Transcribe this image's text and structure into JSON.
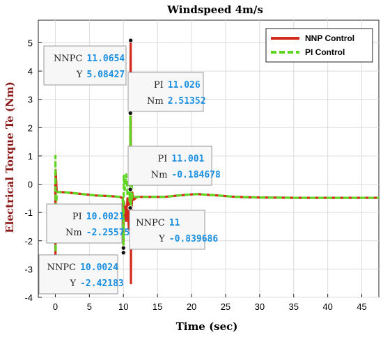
{
  "chart_data": {
    "type": "line",
    "title": "Windspeed 4m/s",
    "xlabel": "Time (sec)",
    "ylabel": "Electrical Torque Te (Nm)",
    "xlim": [
      -2.5,
      47.5
    ],
    "ylim": [
      -4,
      5.8
    ],
    "xticks": [
      0,
      5,
      10,
      15,
      20,
      25,
      30,
      35,
      40,
      45
    ],
    "yticks": [
      -4,
      -3,
      -2,
      -1,
      0,
      1,
      2,
      3,
      4,
      5
    ],
    "grid": true,
    "legend_position": "top-right",
    "series": [
      {
        "name": "NNP Control",
        "color": "#d42a1e",
        "style": "solid",
        "x": [
          0,
          0.02,
          0.05,
          0.2,
          1,
          2,
          4,
          6,
          8,
          9.5,
          9.9,
          10.0,
          10.0024,
          10.05,
          10.2,
          10.4,
          10.6,
          10.8,
          10.9,
          11.0,
          11.02,
          11.0654,
          11.1,
          11.15,
          11.2,
          11.3,
          11.5,
          12,
          14,
          16,
          18,
          20,
          21,
          22,
          24,
          26,
          28,
          30,
          35,
          40,
          45,
          47.5
        ],
        "y": [
          0,
          -2.6,
          0.5,
          -0.28,
          -0.28,
          -0.3,
          -0.35,
          -0.4,
          -0.42,
          -0.45,
          -0.5,
          -2.0,
          -2.42183,
          -0.6,
          -0.8,
          -1.3,
          -0.5,
          -1.6,
          -0.7,
          -0.839686,
          3.0,
          5.08427,
          -3.5,
          0.9,
          -0.9,
          -0.3,
          -0.55,
          -0.45,
          -0.45,
          -0.45,
          -0.4,
          -0.36,
          -0.35,
          -0.37,
          -0.4,
          -0.44,
          -0.46,
          -0.47,
          -0.48,
          -0.48,
          -0.48,
          -0.48
        ]
      },
      {
        "name": "PI Control",
        "color": "#5ed622",
        "style": "dashed",
        "x": [
          0,
          0.02,
          0.05,
          0.2,
          1,
          2,
          4,
          6,
          8,
          9.5,
          9.9,
          10.0,
          10.0021,
          10.05,
          10.2,
          10.4,
          10.6,
          10.8,
          10.9,
          11.0,
          11.001,
          11.026,
          11.1,
          11.2,
          11.3,
          11.5,
          12,
          14,
          16,
          18,
          20,
          21,
          22,
          24,
          26,
          28,
          30,
          35,
          40,
          45,
          47.5
        ],
        "y": [
          0,
          1.0,
          -2.4,
          -0.28,
          -0.28,
          -0.3,
          -0.35,
          -0.4,
          -0.42,
          -0.45,
          -0.5,
          -1.8,
          -2.25575,
          0.3,
          -0.2,
          0.35,
          -0.4,
          0.2,
          -0.6,
          0.5,
          -0.184678,
          2.51352,
          -1.0,
          0.3,
          -0.5,
          -0.45,
          -0.45,
          -0.45,
          -0.45,
          -0.4,
          -0.36,
          -0.35,
          -0.37,
          -0.4,
          -0.44,
          -0.46,
          -0.47,
          -0.48,
          -0.48,
          -0.48,
          -0.48
        ]
      }
    ],
    "datatips": [
      {
        "k1": "NNPC",
        "v1": "11.0654",
        "k2": "Y",
        "v2": "5.08427",
        "x": 11.0654,
        "y": 5.08427
      },
      {
        "k1": "PI",
        "v1": "11.026",
        "k2": "Nm",
        "v2": "2.51352",
        "x": 11.026,
        "y": 2.51352
      },
      {
        "k1": "PI",
        "v1": "11.001",
        "k2": "Nm",
        "v2": "-0.184678",
        "x": 11.001,
        "y": -0.184678
      },
      {
        "k1": "NNPC",
        "v1": "11",
        "k2": "Y",
        "v2": "-0.839686",
        "x": 11,
        "y": -0.839686
      },
      {
        "k1": "PI",
        "v1": "10.0021",
        "k2": "Nm",
        "v2": "-2.25575",
        "x": 10.0021,
        "y": -2.25575
      },
      {
        "k1": "NNPC",
        "v1": "10.0024",
        "k2": "Y",
        "v2": "-2.42183",
        "x": 10.0024,
        "y": -2.42183
      }
    ],
    "value_color": "#1a8fe0",
    "ylabel_color": "#8b1a1a"
  }
}
